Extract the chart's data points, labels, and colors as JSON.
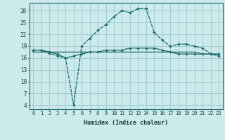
{
  "xlabel": "Humidex (Indice chaleur)",
  "background_color": "#cce9eb",
  "grid_color": "#9fcdd0",
  "line_color": "#1a6b6e",
  "x": [
    0,
    1,
    2,
    3,
    4,
    5,
    6,
    7,
    8,
    9,
    10,
    11,
    12,
    13,
    14,
    15,
    16,
    17,
    18,
    19,
    20,
    21,
    22,
    23
  ],
  "curve1_marked": [
    18,
    18,
    17.5,
    17,
    16,
    16.5,
    17,
    17.5,
    17.5,
    18,
    18,
    18,
    18.5,
    18.5,
    18.5,
    18.5,
    18,
    17.5,
    17,
    17,
    17,
    17,
    17,
    17
  ],
  "curve2_marked": [
    18,
    18,
    17.2,
    16.5,
    16,
    4,
    19,
    21,
    23,
    24.5,
    26.5,
    28,
    27.5,
    28.5,
    28.5,
    22.5,
    20.5,
    19,
    19.5,
    19.5,
    19,
    18.5,
    17,
    16.5
  ],
  "curve3_flat": [
    17.5,
    17.5,
    17.5,
    17.5,
    17.5,
    17.5,
    17.5,
    17.5,
    17.5,
    17.5,
    17.5,
    17.5,
    17.5,
    17.5,
    17.5,
    17.5,
    17.5,
    17.5,
    17.5,
    17.5,
    17.5,
    17,
    17,
    17
  ],
  "ylim": [
    3,
    30
  ],
  "xlim": [
    -0.5,
    23.5
  ],
  "yticks": [
    4,
    7,
    10,
    13,
    16,
    19,
    22,
    25,
    28
  ]
}
